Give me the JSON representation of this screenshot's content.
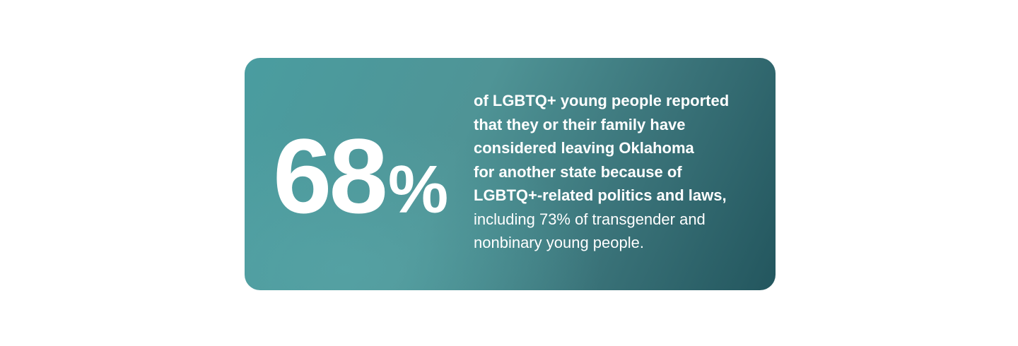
{
  "stat": {
    "number": "68",
    "unit": "%"
  },
  "description": {
    "bold_lines": [
      "of LGBTQ+ young people reported",
      "that they or their family have",
      "considered leaving Oklahoma",
      "for another state because of",
      "LGBTQ+-related politics and laws,"
    ],
    "regular_lines": [
      "including 73% of transgender and",
      "nonbinary young people."
    ]
  }
}
